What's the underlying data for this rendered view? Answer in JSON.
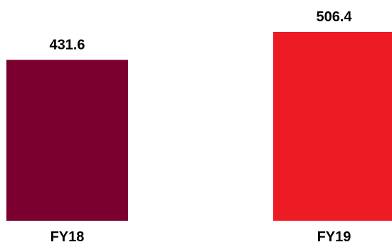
{
  "chart_data": {
    "type": "bar",
    "categories": [
      "FY18",
      "FY19"
    ],
    "values": [
      431.6,
      506.4
    ],
    "data_labels": [
      "431.6",
      "506.4"
    ],
    "colors": [
      "#7b0030",
      "#ed1c24"
    ],
    "title": "",
    "xlabel": "",
    "ylabel": "",
    "ylim": [
      0,
      506.4
    ],
    "grid": false,
    "legend": "none"
  }
}
